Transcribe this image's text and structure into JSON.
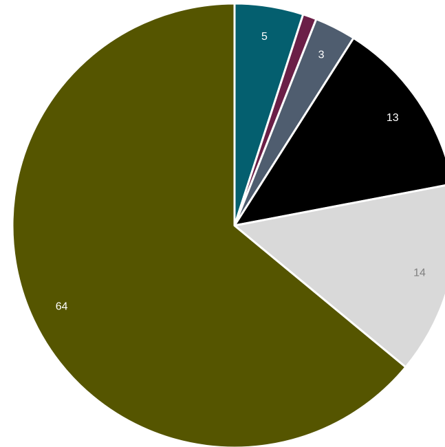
{
  "chart_data": {
    "type": "pie",
    "start_angle_deg": 0,
    "direction": "clockwise",
    "legend": "none",
    "slices": [
      {
        "value": 5,
        "label": "5",
        "color": "#045F6F",
        "label_color": "#FFFFFF"
      },
      {
        "value": 1,
        "label": "",
        "color": "#6B1F47",
        "label_color": "#FFFFFF"
      },
      {
        "value": 3,
        "label": "3",
        "color": "#4F5D6F",
        "label_color": "#FFFFFF"
      },
      {
        "value": 13,
        "label": "13",
        "color": "#000000",
        "label_color": "#FFFFFF"
      },
      {
        "value": 14,
        "label": "14",
        "color": "#D9D9D9",
        "label_color": "#808080"
      },
      {
        "value": 64,
        "label": "64",
        "color": "#555500",
        "label_color": "#FFFFFF"
      }
    ]
  }
}
